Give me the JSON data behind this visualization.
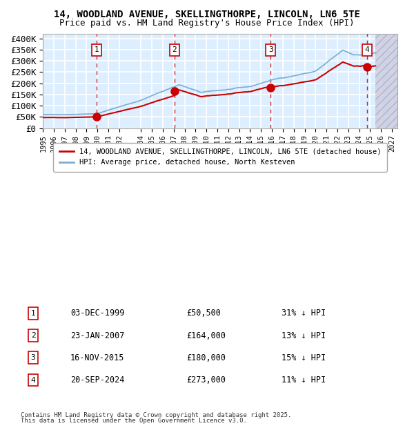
{
  "title_line1": "14, WOODLAND AVENUE, SKELLINGTHORPE, LINCOLN, LN6 5TE",
  "title_line2": "Price paid vs. HM Land Registry's House Price Index (HPI)",
  "ylim": [
    0,
    420000
  ],
  "yticks": [
    0,
    50000,
    100000,
    150000,
    200000,
    250000,
    300000,
    350000,
    400000
  ],
  "ytick_labels": [
    "£0",
    "£50K",
    "£100K",
    "£150K",
    "£200K",
    "£250K",
    "£300K",
    "£350K",
    "£400K"
  ],
  "sale_color": "#cc0000",
  "hpi_color": "#7aadd4",
  "background_color": "#ddeeff",
  "grid_color": "#ffffff",
  "vline_color": "#cc0000",
  "purchases": [
    {
      "num": 1,
      "date_x": 1999.92,
      "price": 50500,
      "label": "03-DEC-1999",
      "price_label": "£50,500",
      "hpi_label": "31% ↓ HPI"
    },
    {
      "num": 2,
      "date_x": 2007.07,
      "price": 164000,
      "label": "23-JAN-2007",
      "price_label": "£164,000",
      "hpi_label": "13% ↓ HPI"
    },
    {
      "num": 3,
      "date_x": 2015.88,
      "price": 180000,
      "label": "16-NOV-2015",
      "price_label": "£180,000",
      "hpi_label": "15% ↓ HPI"
    },
    {
      "num": 4,
      "date_x": 2024.72,
      "price": 273000,
      "label": "20-SEP-2024",
      "price_label": "£273,000",
      "hpi_label": "11% ↓ HPI"
    }
  ],
  "legend_sale_label": "14, WOODLAND AVENUE, SKELLINGTHORPE, LINCOLN, LN6 5TE (detached house)",
  "legend_hpi_label": "HPI: Average price, detached house, North Kesteven",
  "footer_line1": "Contains HM Land Registry data © Crown copyright and database right 2025.",
  "footer_line2": "This data is licensed under the Open Government Licence v3.0.",
  "xmin": 1995.0,
  "xmax": 2027.5,
  "future_start": 2025.5,
  "x_tick_years": [
    1995,
    1996,
    1997,
    1998,
    1999,
    2000,
    2001,
    2002,
    2004,
    2005,
    2006,
    2007,
    2008,
    2009,
    2010,
    2011,
    2012,
    2013,
    2014,
    2015,
    2016,
    2017,
    2018,
    2019,
    2020,
    2021,
    2022,
    2023,
    2024,
    2025,
    2026,
    2027
  ]
}
